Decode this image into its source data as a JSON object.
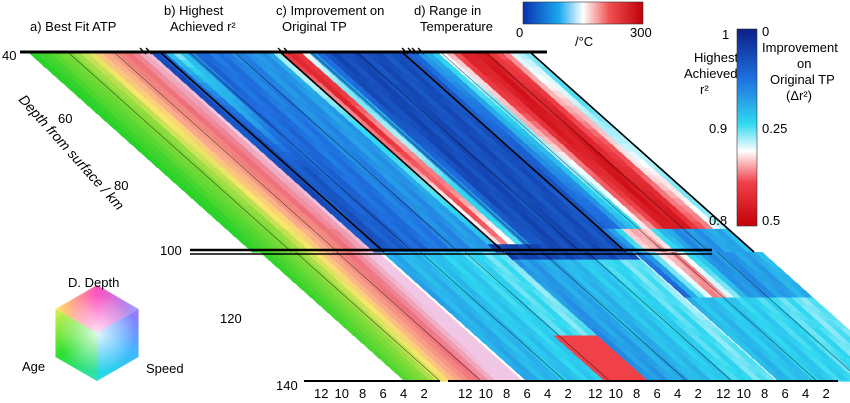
{
  "panels": [
    {
      "id": "a",
      "title_lines": [
        "a) Best Fit ATP"
      ],
      "colormap": "rgb-cube"
    },
    {
      "id": "b",
      "title_lines": [
        "b) Highest",
        "Achieved r²"
      ],
      "colormap": "r2"
    },
    {
      "id": "c",
      "title_lines": [
        "c) Improvement on",
        "Original TP"
      ],
      "colormap": "dr2"
    },
    {
      "id": "d",
      "title_lines": [
        "d) Range in",
        "Temperature"
      ],
      "colormap": "range"
    }
  ],
  "depth_axis": {
    "label": "Depth from surface / km",
    "ticks": [
      "40",
      "60",
      "80",
      "100",
      "120",
      "140"
    ],
    "range": [
      40,
      140
    ],
    "break_at": 100
  },
  "bottom_axis": {
    "ticks": [
      "12",
      "10",
      "8",
      "6",
      "4",
      "2"
    ],
    "range": [
      13,
      1
    ]
  },
  "range_colorbar": {
    "min_label": "0",
    "max_label": "300",
    "unit": "/°C",
    "range": [
      0,
      300
    ]
  },
  "r2_colorbar": {
    "left_title_lines": [
      "Highest",
      "Achieved",
      "r²"
    ],
    "right_title_lines": [
      "Improvement",
      "on",
      "Original TP",
      "(Δr²)"
    ],
    "left_ticks": [
      "1",
      "0.9",
      "0.8"
    ],
    "right_ticks": [
      "0",
      "0.25",
      "0.5"
    ],
    "r2_range": [
      0.8,
      1
    ],
    "dr2_range": [
      0,
      0.5
    ]
  },
  "legend_cube": {
    "top_label": "D. Depth",
    "left_label": "Age",
    "right_label": "Speed"
  },
  "colors": {
    "blue_dark": "#0b2d9c",
    "blue": "#1f5fd8",
    "cyan": "#2fd6ee",
    "white": "#ffffff",
    "red": "#e0101a",
    "red_dark": "#c00008"
  },
  "chart_data": {
    "type": "heatmap",
    "grid": "age (bottom axis, 12 to 2) x depth from surface (40 to 140 km); panels a-d share one grid",
    "xlabel": "",
    "ylabel": "Depth from surface / km",
    "ylim": [
      40,
      140
    ],
    "xlim": [
      13,
      1
    ],
    "series": [
      {
        "name": "a) Best Fit ATP",
        "values": "color-coded (Age, Speed, D. Depth)"
      },
      {
        "name": "b) Highest Achieved r²",
        "values": "r² 0.8 to 1"
      },
      {
        "name": "c) Improvement on Original TP",
        "values": "Δr² 0 to 0.5"
      },
      {
        "name": "d) Range in Temperature",
        "values": "0 to 300 °C"
      }
    ]
  }
}
